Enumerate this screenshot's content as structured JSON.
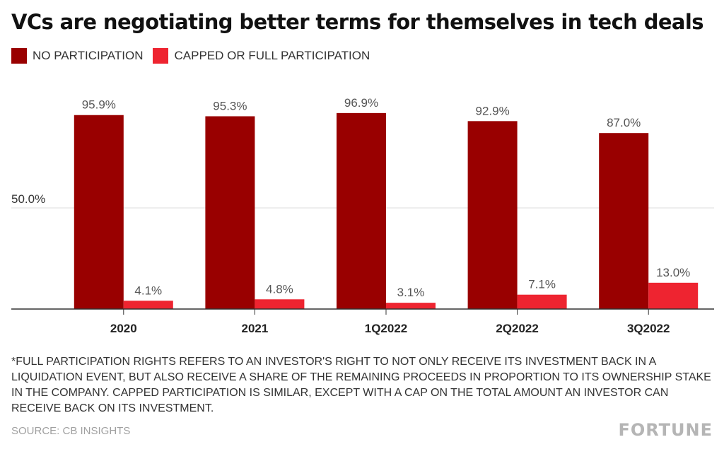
{
  "title": "VCs are negotiating better terms for themselves in tech deals",
  "legend": [
    {
      "label": "NO PARTICIPATION",
      "color": "#990000"
    },
    {
      "label": "CAPPED OR FULL PARTICIPATION",
      "color": "#ee2430"
    }
  ],
  "footnote": "*FULL PARTICIPATION RIGHTS REFERS TO AN INVESTOR'S RIGHT TO NOT ONLY RECEIVE ITS INVESTMENT BACK IN A LIQUIDATION EVENT, BUT ALSO RECEIVE A SHARE OF THE REMAINING PROCEEDS IN PROPORTION TO ITS OWNERSHIP STAKE IN THE COMPANY. CAPPED PARTICIPATION IS SIMILAR, EXCEPT WITH A CAP ON THE TOTAL AMOUNT AN INVESTOR CAN RECEIVE BACK ON ITS INVESTMENT.",
  "source": "SOURCE: CB INSIGHTS",
  "brand": "FORTUNE",
  "chart_data": {
    "type": "bar",
    "title": "VCs are negotiating better terms for themselves in tech deals",
    "categories": [
      "2020",
      "2021",
      "1Q2022",
      "2Q2022",
      "3Q2022"
    ],
    "series": [
      {
        "name": "NO PARTICIPATION",
        "color": "#990000",
        "values": [
          95.9,
          95.3,
          96.9,
          92.9,
          87.0
        ],
        "labels": [
          "95.9%",
          "95.3%",
          "96.9%",
          "92.9%",
          "87.0%"
        ]
      },
      {
        "name": "CAPPED OR FULL PARTICIPATION",
        "color": "#ee2430",
        "values": [
          4.1,
          4.8,
          3.1,
          7.1,
          13.0
        ],
        "labels": [
          "4.1%",
          "4.8%",
          "3.1%",
          "7.1%",
          "13.0%"
        ]
      }
    ],
    "ylim": [
      0,
      100
    ],
    "yticks": [
      {
        "value": 50,
        "label": "50.0%"
      }
    ],
    "grid": true,
    "legend_position": "top-left"
  }
}
